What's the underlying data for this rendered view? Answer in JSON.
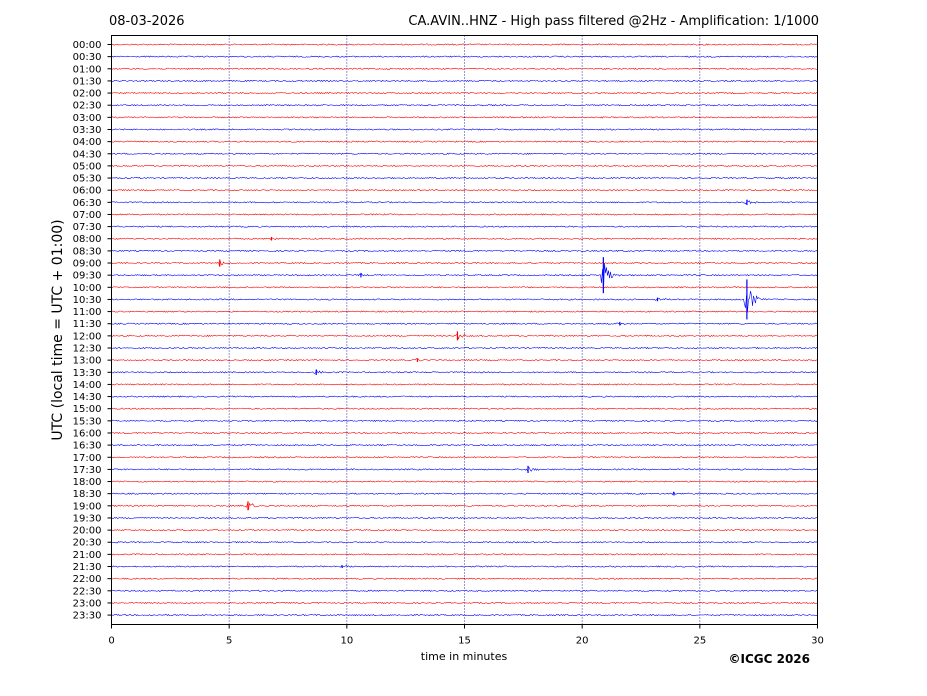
{
  "header": {
    "date": "08-03-2026",
    "title": "CA.AVIN..HNZ - High pass filtered @2Hz - Amplification: 1/1000"
  },
  "footer": {
    "copyright": "©ICGC 2026"
  },
  "chart_data": {
    "type": "line",
    "title": "CA.AVIN..HNZ - High pass filtered @2Hz - Amplification: 1/1000",
    "xlabel": "time in minutes",
    "ylabel": "UTC (local time = UTC + 01:00)",
    "xlim": [
      0,
      30
    ],
    "x_ticks": [
      0,
      5,
      10,
      15,
      20,
      25,
      30
    ],
    "x_tick_labels": [
      "0",
      "5",
      "10",
      "15",
      "20",
      "25",
      "30"
    ],
    "grid": "vertical dotted lines at 5-minute intervals",
    "rows": [
      "00:00",
      "00:30",
      "01:00",
      "01:30",
      "02:00",
      "02:30",
      "03:00",
      "03:30",
      "04:00",
      "04:30",
      "05:00",
      "05:30",
      "06:00",
      "06:30",
      "07:00",
      "07:30",
      "08:00",
      "08:30",
      "09:00",
      "09:30",
      "10:00",
      "10:30",
      "11:00",
      "11:30",
      "12:00",
      "12:30",
      "13:00",
      "13:30",
      "14:00",
      "14:30",
      "15:00",
      "15:30",
      "16:00",
      "16:30",
      "17:00",
      "17:30",
      "18:00",
      "18:30",
      "19:00",
      "19:30",
      "20:00",
      "20:30",
      "21:00",
      "21:30",
      "22:00",
      "22:30",
      "23:00",
      "23:30"
    ],
    "row_colors": [
      "#ff0000",
      "#0000ff"
    ],
    "events": [
      {
        "row": "06:30",
        "minute": 27.0,
        "amplitude": 0.3
      },
      {
        "row": "08:00",
        "minute": 6.8,
        "amplitude": 0.2
      },
      {
        "row": "09:00",
        "minute": 4.6,
        "amplitude": 0.4
      },
      {
        "row": "09:30",
        "minute": 10.6,
        "amplitude": 0.25
      },
      {
        "row": "09:30",
        "minute": 20.9,
        "amplitude": 2.0
      },
      {
        "row": "10:30",
        "minute": 27.0,
        "amplitude": 2.5
      },
      {
        "row": "10:30",
        "minute": 23.2,
        "amplitude": 0.2
      },
      {
        "row": "11:30",
        "minute": 21.6,
        "amplitude": 0.2
      },
      {
        "row": "12:00",
        "minute": 14.7,
        "amplitude": 0.5
      },
      {
        "row": "13:00",
        "minute": 13.0,
        "amplitude": 0.2
      },
      {
        "row": "13:30",
        "minute": 8.7,
        "amplitude": 0.3
      },
      {
        "row": "17:30",
        "minute": 17.7,
        "amplitude": 0.4
      },
      {
        "row": "18:30",
        "minute": 23.9,
        "amplitude": 0.2
      },
      {
        "row": "19:00",
        "minute": 5.8,
        "amplitude": 0.5
      },
      {
        "row": "21:30",
        "minute": 9.8,
        "amplitude": 0.15
      }
    ]
  }
}
